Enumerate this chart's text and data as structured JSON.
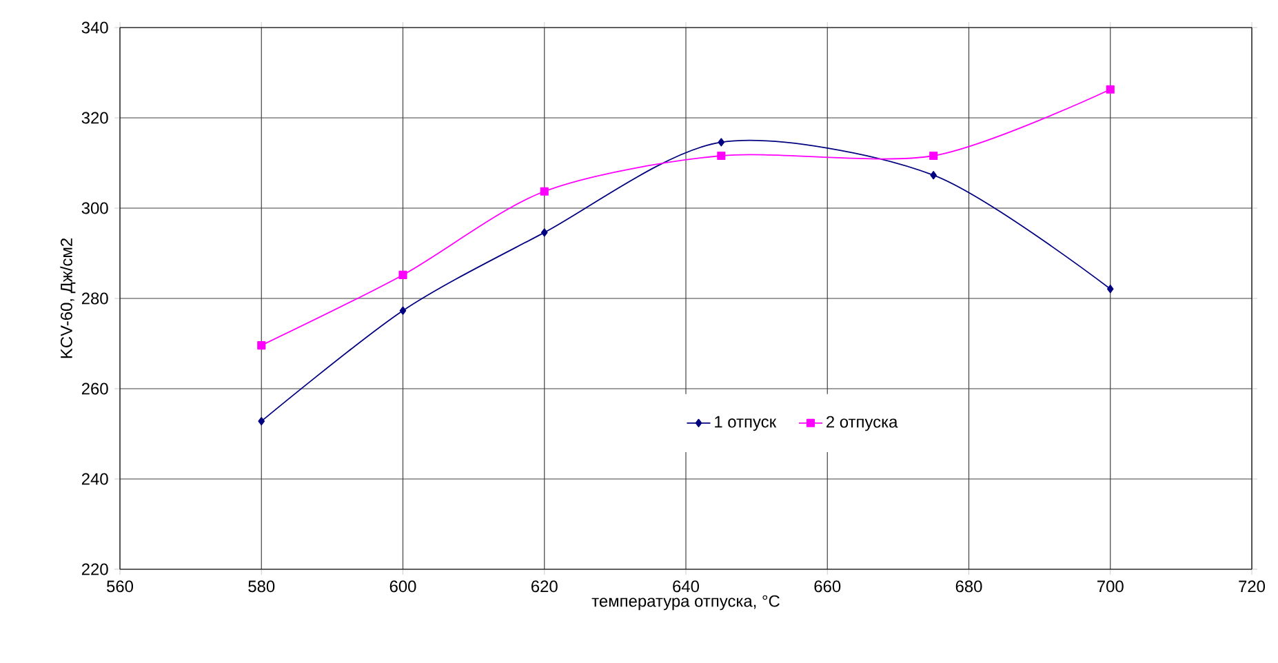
{
  "chart_data": {
    "type": "line",
    "xlabel": "температура отпуска, °C",
    "ylabel": "KCV-60, Дж/см2",
    "x": [
      580,
      600,
      620,
      645,
      675,
      700
    ],
    "series": [
      {
        "name": "1 отпуск",
        "color": "#000080",
        "marker": "diamond",
        "values": [
          252.8,
          277.3,
          294.6,
          314.6,
          307.3,
          282.1
        ]
      },
      {
        "name": "2 отпуска",
        "color": "#ff00ff",
        "marker": "square",
        "values": [
          269.6,
          285.2,
          303.7,
          311.6,
          311.6,
          326.3
        ]
      }
    ],
    "xlim": [
      560,
      720
    ],
    "ylim": [
      220,
      340
    ],
    "xticks": [
      560,
      580,
      600,
      620,
      640,
      660,
      680,
      700,
      720
    ],
    "yticks": [
      220,
      240,
      260,
      280,
      300,
      320,
      340
    ],
    "grid": true,
    "legend": "bottom",
    "line_style": "solid"
  }
}
